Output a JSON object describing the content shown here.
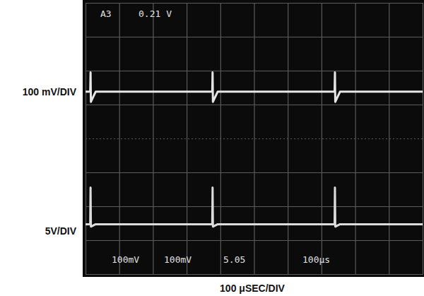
{
  "chart_data": {
    "type": "line",
    "y_labels": [
      "100 mV/DIV",
      "5V/DIV"
    ],
    "xlabel": "100 μSEC/DIV",
    "annotations": [
      "A3",
      "0.21 V",
      "100mV",
      "100mV",
      "5.05",
      "100μs"
    ],
    "x": [
      0,
      14,
      15,
      16,
      30,
      376,
      377,
      378,
      392,
      739,
      740,
      741,
      755,
      1000
    ],
    "series": [
      {
        "color": "#e6e6e6",
        "values": [
          1.38,
          1.38,
          1.95,
          1.08,
          1.38,
          1.38,
          1.95,
          1.08,
          1.38,
          1.38,
          1.95,
          1.08,
          1.38,
          1.38
        ]
      },
      {
        "color": "#dcdcdc",
        "values": [
          -2.53,
          -2.53,
          -1.45,
          -2.6,
          -2.53,
          -2.53,
          -1.45,
          -2.6,
          -2.53,
          -2.53,
          -1.45,
          -2.6,
          -2.53,
          -2.53
        ]
      }
    ],
    "xlim": [
      0,
      1000
    ],
    "xticks": [
      0,
      100,
      200,
      300,
      400,
      500,
      600,
      700,
      800,
      900,
      1000
    ],
    "ylim": [
      -4,
      4
    ],
    "yticks": [
      -4,
      -3,
      -2,
      -1,
      0,
      1,
      2,
      3,
      4
    ],
    "grid": true,
    "tick_labels": false
  }
}
